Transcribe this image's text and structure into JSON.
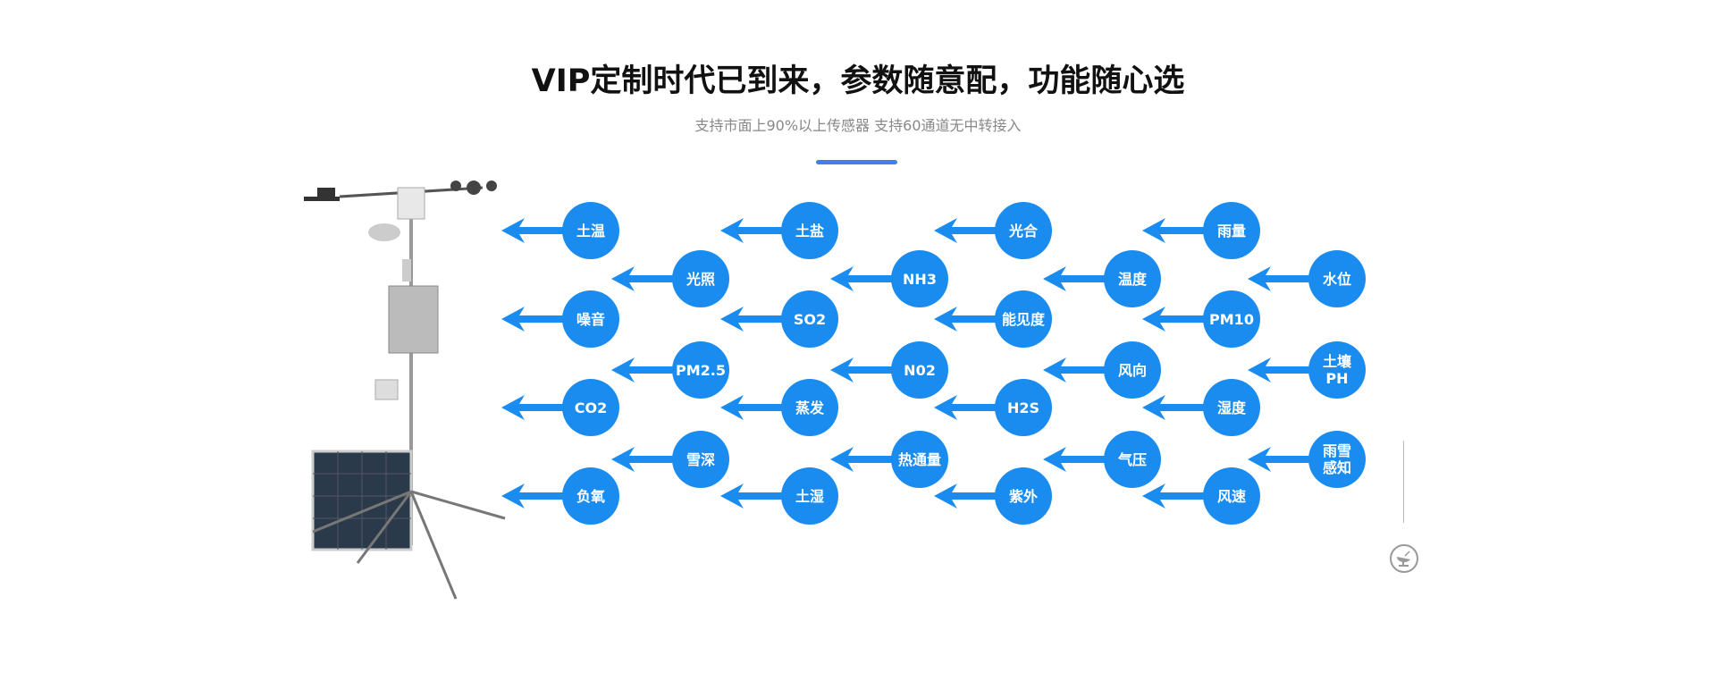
{
  "header": {
    "title": "VIP定制时代已到来，参数随意配，功能随心选",
    "subtitle": "支持市面上90%以上传感器 支持60通道无中转接入"
  },
  "colors": {
    "accent": "#1a8cf0",
    "divider": "#3f7ff0"
  },
  "sensors": [
    {
      "label": "土温",
      "col": 0,
      "row": 0
    },
    {
      "label": "噪音",
      "col": 0,
      "row": 1
    },
    {
      "label": "CO2",
      "col": 0,
      "row": 2
    },
    {
      "label": "负氧",
      "col": 0,
      "row": 3
    },
    {
      "label": "光照",
      "col": 1,
      "row": 0
    },
    {
      "label": "PM2.5",
      "col": 1,
      "row": 1
    },
    {
      "label": "雪深",
      "col": 1,
      "row": 2
    },
    {
      "label": "土盐",
      "col": 2,
      "row": 0
    },
    {
      "label": "SO2",
      "col": 2,
      "row": 1
    },
    {
      "label": "蒸发",
      "col": 2,
      "row": 2
    },
    {
      "label": "土湿",
      "col": 2,
      "row": 3
    },
    {
      "label": "NH3",
      "col": 3,
      "row": 0
    },
    {
      "label": "N02",
      "col": 3,
      "row": 1
    },
    {
      "label": "热通量",
      "col": 3,
      "row": 2
    },
    {
      "label": "光合",
      "col": 4,
      "row": 0
    },
    {
      "label": "能见度",
      "col": 4,
      "row": 1
    },
    {
      "label": "H2S",
      "col": 4,
      "row": 2
    },
    {
      "label": "紫外",
      "col": 4,
      "row": 3
    },
    {
      "label": "温度",
      "col": 5,
      "row": 0
    },
    {
      "label": "风向",
      "col": 5,
      "row": 1
    },
    {
      "label": "气压",
      "col": 5,
      "row": 2
    },
    {
      "label": "雨量",
      "col": 6,
      "row": 0
    },
    {
      "label": "PM10",
      "col": 6,
      "row": 1
    },
    {
      "label": "湿度",
      "col": 6,
      "row": 2
    },
    {
      "label": "风速",
      "col": 6,
      "row": 3
    },
    {
      "label": "水位",
      "col": 7,
      "row": 0
    },
    {
      "label": "土壤\nPH",
      "col": 7,
      "row": 1
    },
    {
      "label": "雨雪\n感知",
      "col": 7,
      "row": 2
    }
  ],
  "icons": {
    "station": "weather-station-image",
    "side": "satellite-dish-icon"
  }
}
